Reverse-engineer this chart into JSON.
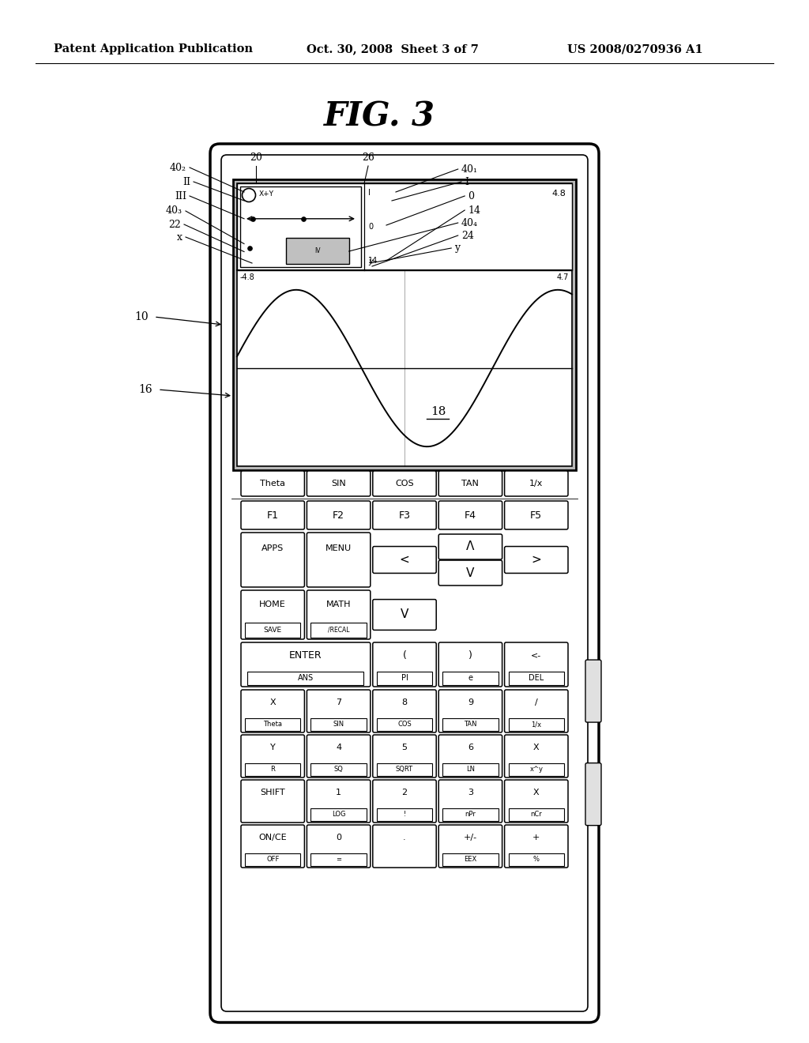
{
  "bg_color": "#ffffff",
  "title": "FIG. 3",
  "header_left": "Patent Application Publication",
  "header_center": "Oct. 30, 2008  Sheet 3 of 7",
  "header_right": "US 2008/0270936 A1",
  "func_keys": [
    "Theta",
    "SIN",
    "COS",
    "TAN",
    "1/x"
  ],
  "f_keys": [
    "F1",
    "F2",
    "F3",
    "F4",
    "F5"
  ],
  "num_rows_top": [
    [
      "X",
      "7",
      "8",
      "9",
      "/"
    ],
    [
      "Y",
      "4",
      "5",
      "6",
      "X"
    ],
    [
      "SHIFT",
      "1",
      "2",
      "3",
      "X"
    ],
    [
      "ON/CE",
      "0",
      ".",
      "+ /-",
      "+"
    ]
  ],
  "num_rows_bot": [
    [
      "Theta",
      "SIN",
      "COS",
      "TAN",
      "1/x"
    ],
    [
      "R",
      "SQ",
      "SQRT",
      "LN",
      "x^y"
    ],
    [
      "",
      "LOG",
      "!",
      "nPr",
      "nCr"
    ],
    [
      "OFF",
      "=",
      "",
      "EEX",
      "%"
    ]
  ]
}
